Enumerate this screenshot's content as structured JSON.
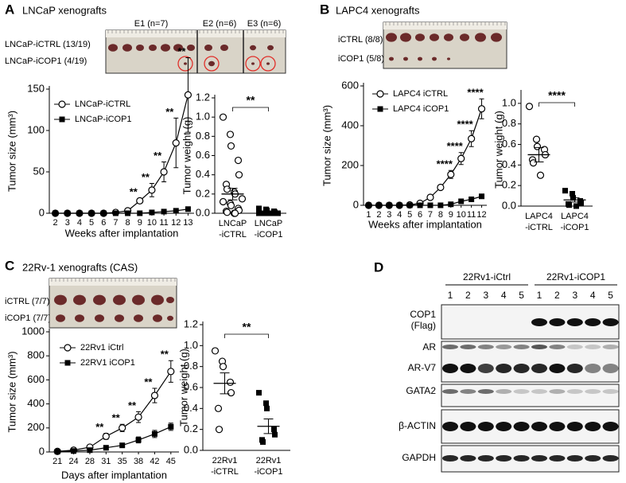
{
  "panels": [
    {
      "label": "A",
      "title": "LNCaP xenografts",
      "photo_headers": [
        "E1 (n=7)",
        "E2 (n=6)",
        "E3 (n=6)"
      ],
      "photo_rows": [
        "LNCaP-iCTRL (13/19)",
        "LNCaP-iCOP1 (4/19)"
      ]
    },
    {
      "label": "B",
      "title": "LAPC4 xenografts",
      "photo_rows": [
        "iCTRL (8/8)",
        "iCOP1 (5/8)"
      ]
    },
    {
      "label": "C",
      "title": "22Rv-1 xenografts (CAS)",
      "photo_rows": [
        "iCTRL (7/7)",
        "iCOP1 (7/7)"
      ]
    },
    {
      "label": "D"
    }
  ],
  "blot": {
    "groups": [
      "22Rv1-iCtrl",
      "22Rv1-iCOP1"
    ],
    "lanes": [
      1,
      2,
      3,
      4,
      5
    ],
    "rows": [
      [
        "COP1",
        "(Flag)"
      ],
      [
        "AR"
      ],
      [
        "AR-V7"
      ],
      [
        "GATA2"
      ],
      [
        "β-ACTIN"
      ],
      [
        "GAPDH"
      ]
    ]
  },
  "chart_data": [
    {
      "type": "line",
      "ylabel": "Tumor size (mm³)",
      "xlabel": "Weeks after implantation",
      "categories": [
        2,
        3,
        4,
        5,
        6,
        7,
        8,
        9,
        10,
        11,
        12,
        13
      ],
      "ylim": [
        0,
        150
      ],
      "yticks": [
        0,
        50,
        100,
        150
      ],
      "series": [
        {
          "name": "LNCaP-iCTRL",
          "marker": "open-circle",
          "color": "#000000",
          "values": [
            0,
            0,
            0,
            0,
            0,
            1,
            3,
            15,
            28,
            50,
            85,
            143
          ],
          "errors": [
            0,
            0,
            0,
            0,
            0,
            0.5,
            1,
            3,
            8,
            12,
            30,
            45
          ]
        },
        {
          "name": "LNCaP-iCOP1",
          "marker": "filled-square",
          "color": "#000000",
          "values": [
            0,
            0,
            0,
            0,
            0,
            0,
            0,
            0,
            1,
            2,
            3,
            5
          ],
          "errors": [
            0,
            0,
            0,
            0,
            0,
            0,
            0,
            0,
            1,
            1,
            1,
            2
          ]
        }
      ],
      "significance": [
        null,
        null,
        null,
        null,
        null,
        null,
        null,
        "**",
        "**",
        "**",
        "**",
        "**"
      ]
    },
    {
      "type": "dot",
      "ylabel": "Tumor weight (g)",
      "categories": [
        [
          "LNCaP",
          "-iCTRL"
        ],
        [
          "LNCaP",
          "-iCOP1"
        ]
      ],
      "ylim": [
        0,
        1.2
      ],
      "yticks": [
        {
          "value": 0,
          "label": "0.0"
        },
        0.2,
        0.4,
        0.6,
        0.8,
        {
          "value": 1,
          "label": "1.0"
        },
        1.2
      ],
      "markers": [
        "open-circle",
        "filled-square"
      ],
      "color": "#000000",
      "values": [
        [
          1.0,
          0.82,
          0.7,
          0.55,
          0.4,
          0.3,
          0.25,
          0.22,
          0.2,
          0.15,
          0.12,
          0.1,
          0.08,
          0.05,
          0.03,
          0.02,
          0.01,
          0,
          0
        ],
        [
          0.05,
          0.04,
          0.03,
          0.02,
          0.01,
          0,
          0,
          0,
          0,
          0,
          0,
          0,
          0,
          0,
          0,
          0,
          0,
          0,
          0
        ]
      ],
      "means": [
        0.2,
        0.02
      ],
      "errors": [
        0.06,
        0.005
      ],
      "significance": "**"
    },
    {
      "type": "line",
      "ylabel": "Tumor size (mm³)",
      "xlabel": "Weeks after implantation",
      "categories": [
        1,
        2,
        3,
        4,
        5,
        6,
        7,
        8,
        9,
        10,
        11,
        12
      ],
      "ylim": [
        0,
        600
      ],
      "yticks": [
        0,
        200,
        400,
        600
      ],
      "series": [
        {
          "name": "LAPC4 iCTRL",
          "marker": "open-circle",
          "color": "#000000",
          "values": [
            0,
            0,
            0,
            0,
            2,
            10,
            40,
            90,
            155,
            235,
            335,
            485
          ],
          "errors": [
            0,
            0,
            0,
            0,
            1,
            3,
            8,
            12,
            20,
            30,
            40,
            50
          ]
        },
        {
          "name": "LAPC4 iCOP1",
          "marker": "filled-square",
          "color": "#000000",
          "values": [
            0,
            0,
            0,
            0,
            0,
            0,
            0,
            0,
            5,
            20,
            30,
            45
          ],
          "errors": [
            0,
            0,
            0,
            0,
            0,
            0,
            0,
            0,
            2,
            5,
            5,
            10
          ]
        }
      ],
      "significance": [
        null,
        null,
        null,
        null,
        null,
        null,
        null,
        null,
        "****",
        "****",
        "****",
        "****"
      ]
    },
    {
      "type": "dot",
      "ylabel": "Tumor weight (g)",
      "categories": [
        [
          "LAPC4",
          "-iCTRL"
        ],
        [
          "LAPC4",
          "-iCOP1"
        ]
      ],
      "ylim": [
        0,
        1.1
      ],
      "yticks": [
        {
          "value": 0,
          "label": "0.0"
        },
        0.2,
        0.4,
        0.6,
        0.8,
        {
          "value": 1,
          "label": "1.0"
        }
      ],
      "markers": [
        "open-circle",
        "filled-square"
      ],
      "color": "#000000",
      "values": [
        [
          0.97,
          0.65,
          0.58,
          0.55,
          0.5,
          0.45,
          0.42,
          0.3
        ],
        [
          0.15,
          0.12,
          0.08,
          0.05,
          0.03,
          0.02,
          0.01,
          0
        ]
      ],
      "means": [
        0.5,
        0.06
      ],
      "errors": [
        0.07,
        0.02
      ],
      "significance": "****"
    },
    {
      "type": "line",
      "ylabel": "Tumor size (mm³)",
      "xlabel": "Days after implantation",
      "categories": [
        21,
        24,
        28,
        31,
        35,
        38,
        42,
        45
      ],
      "ylim": [
        0,
        1000
      ],
      "yticks": [
        0,
        200,
        400,
        600,
        800,
        1000
      ],
      "series": [
        {
          "name": "22Rv1 iCtrl",
          "marker": "open-circle",
          "color": "#000000",
          "values": [
            5,
            15,
            40,
            130,
            200,
            290,
            470,
            670
          ],
          "errors": [
            2,
            5,
            10,
            25,
            30,
            45,
            60,
            90
          ]
        },
        {
          "name": "22RV1 iCOP1",
          "marker": "filled-square",
          "color": "#000000",
          "values": [
            3,
            8,
            15,
            35,
            55,
            100,
            150,
            210
          ],
          "errors": [
            1,
            3,
            5,
            8,
            10,
            25,
            30,
            30
          ]
        }
      ],
      "significance": [
        null,
        null,
        null,
        "**",
        "**",
        "**",
        "**",
        "**"
      ]
    },
    {
      "type": "dot",
      "ylabel": "Tumor weight (g)",
      "categories": [
        [
          "22Rv1",
          "-iCTRL"
        ],
        [
          "22Rv1",
          "-iCOP1"
        ]
      ],
      "ylim": [
        0,
        1.2
      ],
      "yticks": [
        {
          "value": 0,
          "label": "0.0"
        },
        0.2,
        0.4,
        0.6,
        0.8,
        {
          "value": 1,
          "label": "1.0"
        },
        1.2
      ],
      "markers": [
        "open-circle",
        "filled-square"
      ],
      "color": "#000000",
      "values": [
        [
          0.95,
          0.85,
          0.8,
          0.65,
          0.55,
          0.4,
          0.2
        ],
        [
          0.55,
          0.45,
          0.4,
          0.2,
          0.15,
          0.1,
          0.08
        ]
      ],
      "means": [
        0.64,
        0.23
      ],
      "errors": [
        0.1,
        0.07
      ],
      "significance": "**"
    }
  ]
}
